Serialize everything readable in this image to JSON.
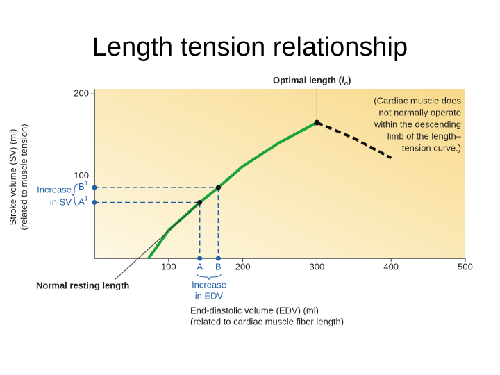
{
  "chart_data": {
    "type": "line",
    "title": "Length tension relationship",
    "xlim": [
      0,
      500
    ],
    "ylim": [
      0,
      206
    ],
    "xticks": [
      100,
      200,
      300,
      400,
      500
    ],
    "yticks": [
      100,
      200
    ],
    "xlabel": [
      "End-diastolic volume (EDV) (ml)",
      "(related to cardiac muscle fiber length)"
    ],
    "ylabel": [
      "Stroke volume (SV) (ml)",
      "(related to muscle tension)"
    ],
    "series": [
      {
        "color": "#1aa33a",
        "dashed": false,
        "x": [
          73,
          100,
          142,
          167,
          200,
          250,
          300
        ],
        "values": [
          0,
          34,
          68,
          86,
          112,
          141,
          165
        ]
      },
      {
        "color": "#111111",
        "dashed": true,
        "x": [
          300,
          350,
          400
        ],
        "values": [
          165,
          146,
          122
        ]
      }
    ],
    "markers": [
      {
        "label": "A",
        "sup": "1",
        "x": 142,
        "y": 68
      },
      {
        "label": "B",
        "sup": "1",
        "x": 167,
        "y": 86
      }
    ],
    "peak": {
      "x": 300,
      "y": 165
    },
    "optimal_label": [
      "Optimal length (",
      "l",
      "o",
      ")"
    ],
    "note": [
      "(Cardiac muscle does",
      "not normally operate",
      "within the descending",
      "limb of the length–",
      "tension curve.)"
    ],
    "resting_label": "Normal resting length",
    "sv_label": [
      "Increase",
      "in SV"
    ],
    "edv_label": [
      "Increase",
      "in EDV"
    ]
  }
}
